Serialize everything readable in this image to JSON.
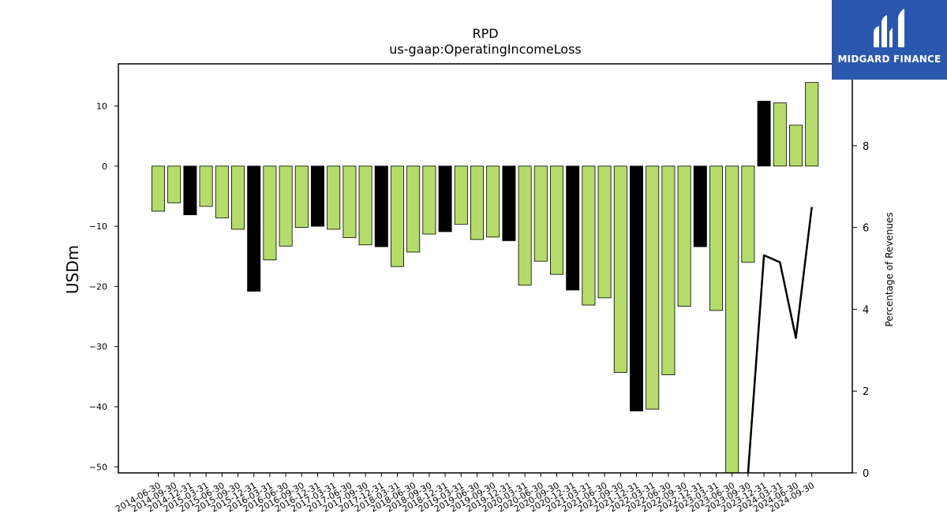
{
  "chart_data": {
    "type": "bar",
    "title": "RPD",
    "subtitle": "us-gaap:OperatingIncomeLoss",
    "ylabel": "USDm",
    "y2label": "Percentage of Revenues",
    "ylim": [
      -51,
      17
    ],
    "y2lim": [
      0,
      10
    ],
    "yticks": [
      10,
      0,
      -10,
      -20,
      -30,
      -40,
      -50
    ],
    "yticklabels": [
      "10",
      "0",
      "−10",
      "−20",
      "−30",
      "−40",
      "−50"
    ],
    "y2ticks": [
      0,
      2,
      4,
      6,
      8
    ],
    "grid": false,
    "categories": [
      "2014-06-30",
      "2014-09-30",
      "2014-12-31",
      "2015-03-31",
      "2015-06-30",
      "2015-09-30",
      "2015-12-31",
      "2016-03-31",
      "2016-06-30",
      "2016-09-30",
      "2016-12-31",
      "2017-03-31",
      "2017-06-30",
      "2017-09-30",
      "2017-12-31",
      "2018-03-31",
      "2018-06-30",
      "2018-09-30",
      "2018-12-31",
      "2019-03-31",
      "2019-06-30",
      "2019-09-30",
      "2019-12-31",
      "2020-03-31",
      "2020-06-30",
      "2020-09-30",
      "2020-12-31",
      "2021-03-31",
      "2021-06-30",
      "2021-09-30",
      "2021-12-31",
      "2022-03-31",
      "2022-06-30",
      "2022-09-30",
      "2022-12-31",
      "2023-03-31",
      "2023-06-30",
      "2023-09-30",
      "2023-12-31",
      "2024-03-31",
      "2024-06-30",
      "2024-09-30"
    ],
    "series": [
      {
        "type": "bar",
        "values": [
          -7.5,
          -6.1,
          -8.1,
          -6.7,
          -8.6,
          -10.5,
          -20.8,
          -15.6,
          -13.3,
          -10.2,
          -10.0,
          -10.5,
          -11.9,
          -13.1,
          -13.4,
          -16.7,
          -14.3,
          -11.3,
          -10.9,
          -9.7,
          -12.2,
          -11.8,
          -12.4,
          -19.8,
          -15.8,
          -18.0,
          -20.6,
          -23.1,
          -21.9,
          -34.3,
          -40.7,
          -40.4,
          -34.7,
          -23.3,
          -13.4,
          -24.0,
          -51.0,
          -16.0,
          10.8,
          10.5,
          6.8,
          13.9
        ],
        "colors": [
          "#b5dc6a",
          "#b5dc6a",
          "#000000",
          "#b5dc6a",
          "#b5dc6a",
          "#b5dc6a",
          "#000000",
          "#b5dc6a",
          "#b5dc6a",
          "#b5dc6a",
          "#000000",
          "#b5dc6a",
          "#b5dc6a",
          "#b5dc6a",
          "#000000",
          "#b5dc6a",
          "#b5dc6a",
          "#b5dc6a",
          "#000000",
          "#b5dc6a",
          "#b5dc6a",
          "#b5dc6a",
          "#000000",
          "#b5dc6a",
          "#b5dc6a",
          "#b5dc6a",
          "#000000",
          "#b5dc6a",
          "#b5dc6a",
          "#b5dc6a",
          "#000000",
          "#b5dc6a",
          "#b5dc6a",
          "#b5dc6a",
          "#000000",
          "#b5dc6a",
          "#b5dc6a",
          "#b5dc6a",
          "#000000",
          "#b5dc6a",
          "#b5dc6a",
          "#b5dc6a"
        ]
      },
      {
        "type": "line",
        "axis": "right",
        "color": "#000000",
        "x": [
          "2023-06-30",
          "2023-09-30",
          "2023-12-31",
          "2024-03-31",
          "2024-06-30",
          "2024-09-30"
        ],
        "values": [
          -2.0,
          0.0,
          5.32,
          5.15,
          3.3,
          6.5
        ]
      }
    ]
  },
  "logo": {
    "text": "MIDGARD FINANCE"
  }
}
